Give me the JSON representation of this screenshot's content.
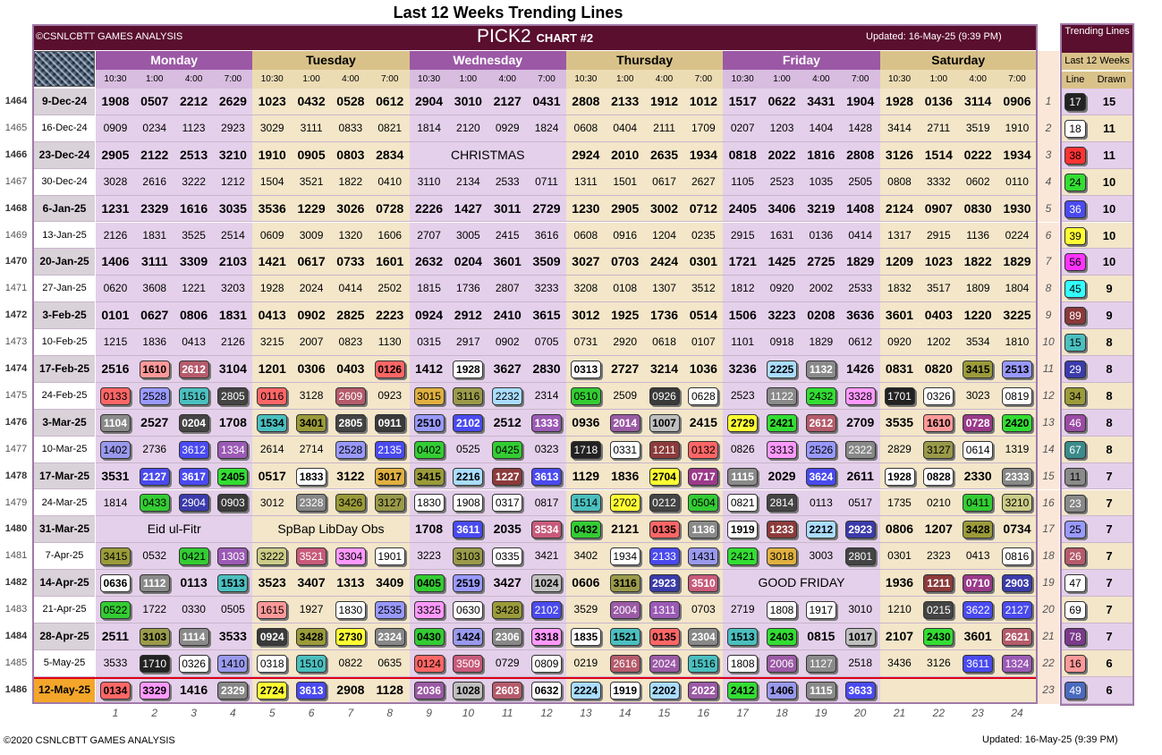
{
  "title": "Last 12 Weeks Trending Lines",
  "copyright_band": "©CSNLCBTT GAMES ANALYSIS",
  "chart_name": "PICK2",
  "chart_sub": "CHART #2",
  "updated": "Updated: 16-May-25 (9:39 PM)",
  "footer_left": "©2020 CSNLCBTT GAMES ANALYSIS",
  "footer_right": "Updated: 16-May-25 (9:39 PM)",
  "days": [
    "Monday",
    "Tuesday",
    "Wednesday",
    "Thursday",
    "Friday",
    "Saturday"
  ],
  "times": [
    "10:30",
    "1:00",
    "4:00",
    "7:00"
  ],
  "column_numbers": [
    "1",
    "2",
    "3",
    "4",
    "5",
    "6",
    "7",
    "8",
    "9",
    "10",
    "11",
    "12",
    "13",
    "14",
    "15",
    "16",
    "17",
    "18",
    "19",
    "20",
    "21",
    "22",
    "23",
    "24"
  ],
  "colors": {
    "band": "#5a0f2e",
    "purple_day": "#9b58a5",
    "gold_day": "#d9c28a",
    "purple_row": "#e4d0ea",
    "gold_row": "#f3e6c9",
    "highlight": "#f4a62a"
  },
  "pill_colors": {
    "01": "#ff6666",
    "02": "#444444",
    "04": "#33cc33",
    "05": "#33cc33",
    "06": "#ffffff",
    "07": "#9b3a8a",
    "08": "#ffffff",
    "10": "#bfbfbf",
    "11": "#8a8a8a",
    "12": "#8c3b3b",
    "13": "#9b5ab5",
    "14": "#9999ee",
    "15": "#4bbfbf",
    "16": "#ff9999",
    "17": "#222222",
    "18": "#ffffff",
    "19": "#ffffff",
    "20": "#9b5aa5",
    "21": "#4a4aee",
    "22": "#aaddff",
    "23": "#888888",
    "24": "#33dd33",
    "25": "#9999ff",
    "26": "#b55b6b",
    "27": "#ffff33",
    "28": "#444444",
    "29": "#3b3bab",
    "30": "#e0b040",
    "31": "#9a9a4a",
    "32": "#cccc88",
    "33": "#ff99ff",
    "34": "#9b9b3a",
    "35": "#c85a7a",
    "36": "#4a4af0",
    "38": "#ff3333",
    "39": "#ffff33",
    "40": "#6a6a6a",
    "41": "#33cc33",
    "42": "#ff66ff",
    "45": "#33ffff",
    "46": "#9b4aa5",
    "47": "#ffffff",
    "49": "#4a6abf",
    "56": "#ff33ff",
    "67": "#3b8b8b",
    "69": "#ffffff",
    "78": "#7a3a8a",
    "89": "#8a3a3a",
    "09": "#3a3a3a",
    "03": "#ffffff"
  },
  "rows": [
    {
      "num": "1464",
      "date": "9-Dec-24",
      "bold": true,
      "cells": [
        "1908",
        "0507",
        "2212",
        "2629",
        "1023",
        "0432",
        "0528",
        "0612",
        "2904",
        "3010",
        "2127",
        "0431",
        "2808",
        "2133",
        "1912",
        "1012",
        "1517",
        "0622",
        "3431",
        "1904",
        "1928",
        "0136",
        "3114",
        "0906"
      ]
    },
    {
      "num": "1465",
      "date": "16-Dec-24",
      "bold": false,
      "cells": [
        "0909",
        "0234",
        "1123",
        "2923",
        "3029",
        "3111",
        "0833",
        "0821",
        "1814",
        "2120",
        "0929",
        "1824",
        "0608",
        "0404",
        "2111",
        "1709",
        "0207",
        "1203",
        "1404",
        "1428",
        "3414",
        "2711",
        "3519",
        "1910"
      ]
    },
    {
      "num": "1466",
      "date": "23-Dec-24",
      "bold": true,
      "cells": [
        "2905",
        "2122",
        "2513",
        "3210",
        "1910",
        "0905",
        "0803",
        "2834",
        "",
        "",
        "",
        "",
        "2924",
        "2010",
        "2635",
        "1934",
        "0818",
        "2022",
        "1816",
        "2808",
        "3126",
        "1514",
        "0222",
        "1934"
      ],
      "holidays": [
        {
          "start": 8,
          "span": 4,
          "text": "CHRISTMAS"
        }
      ]
    },
    {
      "num": "1467",
      "date": "30-Dec-24",
      "bold": false,
      "cells": [
        "3028",
        "2616",
        "3222",
        "1212",
        "1504",
        "3521",
        "1822",
        "0410",
        "3110",
        "2134",
        "2533",
        "0711",
        "1311",
        "1501",
        "0617",
        "2627",
        "1105",
        "2523",
        "1035",
        "2505",
        "0808",
        "3332",
        "0602",
        "0110"
      ]
    },
    {
      "num": "1468",
      "date": "6-Jan-25",
      "bold": true,
      "cells": [
        "1231",
        "2329",
        "1616",
        "3035",
        "3536",
        "1229",
        "3026",
        "0728",
        "2226",
        "1427",
        "3011",
        "2729",
        "1230",
        "2905",
        "3002",
        "0712",
        "2405",
        "3406",
        "3219",
        "1408",
        "2124",
        "0907",
        "0830",
        "1930"
      ]
    },
    {
      "num": "1469",
      "date": "13-Jan-25",
      "bold": false,
      "cells": [
        "2126",
        "1831",
        "3525",
        "2514",
        "0609",
        "3009",
        "1320",
        "1606",
        "2707",
        "3005",
        "2415",
        "3616",
        "0608",
        "0916",
        "1204",
        "0235",
        "2915",
        "1631",
        "0136",
        "0414",
        "1317",
        "2915",
        "1136",
        "0224"
      ]
    },
    {
      "num": "1470",
      "date": "20-Jan-25",
      "bold": true,
      "cells": [
        "1406",
        "3111",
        "3309",
        "2103",
        "1421",
        "0617",
        "0733",
        "1601",
        "2632",
        "0204",
        "3601",
        "3509",
        "3027",
        "0703",
        "2424",
        "0301",
        "1721",
        "1425",
        "2725",
        "1829",
        "1209",
        "1023",
        "1822",
        "1829"
      ]
    },
    {
      "num": "1471",
      "date": "27-Jan-25",
      "bold": false,
      "cells": [
        "0620",
        "3608",
        "1221",
        "3203",
        "1928",
        "2024",
        "0414",
        "2502",
        "1815",
        "1736",
        "2807",
        "3233",
        "3208",
        "0108",
        "1307",
        "3512",
        "1812",
        "0920",
        "2002",
        "2533",
        "1832",
        "3517",
        "1809",
        "1804"
      ]
    },
    {
      "num": "1472",
      "date": "3-Feb-25",
      "bold": true,
      "cells": [
        "0101",
        "0627",
        "0806",
        "1831",
        "0413",
        "0902",
        "2825",
        "2223",
        "0924",
        "2912",
        "2410",
        "3615",
        "3012",
        "1925",
        "1736",
        "0514",
        "1506",
        "3223",
        "0208",
        "3636",
        "3601",
        "0403",
        "1220",
        "3225"
      ]
    },
    {
      "num": "1473",
      "date": "10-Feb-25",
      "bold": false,
      "cells": [
        "1215",
        "1836",
        "0413",
        "2126",
        "3215",
        "2007",
        "0823",
        "1130",
        "0315",
        "2917",
        "0902",
        "0705",
        "0731",
        "2920",
        "0618",
        "0107",
        "1101",
        "0918",
        "1829",
        "0612",
        "0920",
        "1202",
        "3534",
        "1810"
      ]
    },
    {
      "num": "1474",
      "date": "17-Feb-25",
      "bold": true,
      "cells": [
        "2516",
        "1610",
        "2612",
        "3104",
        "1201",
        "0306",
        "0403",
        "0126",
        "1412",
        "1928",
        "3627",
        "2830",
        "0313",
        "2727",
        "3214",
        "1036",
        "3236",
        "2225",
        "1132",
        "1426",
        "0831",
        "0820",
        "3415",
        "2513"
      ],
      "pills": [
        1,
        2,
        7,
        9,
        12,
        17,
        18,
        22,
        23
      ]
    },
    {
      "num": "1475",
      "date": "24-Feb-25",
      "bold": false,
      "cells": [
        "0133",
        "2528",
        "1516",
        "2805",
        "0116",
        "3128",
        "2609",
        "0923",
        "3015",
        "3116",
        "2232",
        "2314",
        "0510",
        "2509",
        "0926",
        "0628",
        "2523",
        "1122",
        "2432",
        "3328",
        "1701",
        "0326",
        "3023",
        "0819"
      ],
      "pills": [
        0,
        1,
        2,
        3,
        4,
        6,
        8,
        9,
        10,
        12,
        14,
        15,
        17,
        18,
        19,
        20,
        21,
        23
      ]
    },
    {
      "num": "1476",
      "date": "3-Mar-25",
      "bold": true,
      "cells": [
        "1104",
        "2527",
        "0204",
        "1708",
        "1534",
        "3401",
        "2805",
        "0911",
        "2510",
        "2102",
        "2512",
        "1333",
        "0936",
        "2014",
        "1007",
        "2415",
        "2729",
        "2421",
        "2612",
        "2709",
        "3535",
        "1610",
        "0728",
        "2420"
      ],
      "pills": [
        0,
        2,
        4,
        5,
        6,
        7,
        8,
        9,
        11,
        13,
        14,
        16,
        17,
        18,
        21,
        22,
        23
      ]
    },
    {
      "num": "1477",
      "date": "10-Mar-25",
      "bold": false,
      "cells": [
        "1402",
        "2736",
        "3612",
        "1334",
        "2614",
        "2714",
        "2528",
        "2135",
        "0402",
        "0525",
        "0425",
        "0323",
        "1718",
        "0331",
        "1211",
        "0132",
        "0826",
        "3313",
        "2526",
        "2322",
        "2829",
        "3127",
        "0614",
        "1319"
      ],
      "pills": [
        0,
        2,
        3,
        6,
        7,
        8,
        10,
        12,
        13,
        14,
        15,
        17,
        18,
        19,
        21,
        22
      ]
    },
    {
      "num": "1478",
      "date": "17-Mar-25",
      "bold": true,
      "cells": [
        "3531",
        "2127",
        "3617",
        "2405",
        "0517",
        "1833",
        "3122",
        "3017",
        "3415",
        "2216",
        "1227",
        "3613",
        "1129",
        "1836",
        "2704",
        "0717",
        "1115",
        "2029",
        "3624",
        "2611",
        "1928",
        "0828",
        "2330",
        "2333"
      ],
      "pills": [
        1,
        2,
        3,
        5,
        7,
        8,
        9,
        10,
        11,
        14,
        15,
        16,
        18,
        20,
        21,
        23
      ]
    },
    {
      "num": "1479",
      "date": "24-Mar-25",
      "bold": false,
      "cells": [
        "1814",
        "0433",
        "2904",
        "0903",
        "3012",
        "2328",
        "3426",
        "3127",
        "1830",
        "1908",
        "0317",
        "0817",
        "1514",
        "2702",
        "0212",
        "0504",
        "0821",
        "2814",
        "0113",
        "0517",
        "1735",
        "0210",
        "0411",
        "3210"
      ],
      "pills": [
        1,
        2,
        3,
        5,
        6,
        7,
        8,
        9,
        10,
        12,
        13,
        14,
        15,
        16,
        17,
        22,
        23
      ]
    },
    {
      "num": "1480",
      "date": "31-Mar-25",
      "bold": true,
      "cells": [
        "",
        "",
        "",
        "",
        "",
        "",
        "",
        "",
        "1708",
        "3611",
        "2035",
        "3534",
        "0432",
        "2121",
        "0135",
        "1136",
        "1919",
        "1233",
        "2212",
        "2923",
        "0806",
        "1207",
        "3428",
        "0734"
      ],
      "pills": [
        9,
        11,
        12,
        14,
        15,
        16,
        17,
        18,
        19,
        22
      ],
      "holidays": [
        {
          "start": 0,
          "span": 4,
          "text": "Eid ul-Fitr"
        },
        {
          "start": 4,
          "span": 4,
          "text": "SpBap LibDay Obs"
        }
      ]
    },
    {
      "num": "1481",
      "date": "7-Apr-25",
      "bold": false,
      "cells": [
        "3415",
        "0532",
        "0421",
        "1303",
        "3222",
        "3521",
        "3304",
        "1901",
        "3223",
        "3103",
        "0335",
        "3421",
        "3402",
        "1934",
        "2133",
        "1431",
        "2421",
        "3018",
        "3003",
        "2801",
        "0301",
        "2323",
        "0413",
        "0816"
      ],
      "pills": [
        0,
        2,
        3,
        4,
        5,
        6,
        7,
        9,
        10,
        13,
        14,
        15,
        16,
        17,
        19,
        23
      ]
    },
    {
      "num": "1482",
      "date": "14-Apr-25",
      "bold": true,
      "cells": [
        "0636",
        "1112",
        "0113",
        "1513",
        "3523",
        "3407",
        "1313",
        "3409",
        "0405",
        "2519",
        "3427",
        "1024",
        "0606",
        "3116",
        "2923",
        "3510",
        "",
        "",
        "",
        "",
        "1936",
        "1211",
        "0710",
        "2903"
      ],
      "pills": [
        0,
        1,
        3,
        8,
        9,
        11,
        13,
        14,
        15,
        21,
        22,
        23
      ],
      "holidays": [
        {
          "start": 16,
          "span": 4,
          "text": "GOOD FRIDAY"
        }
      ]
    },
    {
      "num": "1483",
      "date": "21-Apr-25",
      "bold": false,
      "cells": [
        "0522",
        "1722",
        "0330",
        "0505",
        "1615",
        "1927",
        "1830",
        "2535",
        "3325",
        "0630",
        "3428",
        "2102",
        "3529",
        "2004",
        "1311",
        "0703",
        "2719",
        "1808",
        "1917",
        "3010",
        "1210",
        "0215",
        "3622",
        "2127"
      ],
      "pills": [
        0,
        4,
        6,
        7,
        8,
        9,
        10,
        11,
        13,
        14,
        17,
        18,
        21,
        22,
        23
      ]
    },
    {
      "num": "1484",
      "date": "28-Apr-25",
      "bold": true,
      "cells": [
        "2511",
        "3103",
        "1114",
        "3533",
        "0924",
        "3428",
        "2730",
        "2324",
        "0430",
        "1424",
        "2306",
        "3318",
        "1835",
        "1521",
        "0135",
        "2304",
        "1513",
        "2403",
        "0815",
        "1017",
        "2107",
        "2430",
        "3601",
        "2621"
      ],
      "pills": [
        1,
        2,
        4,
        5,
        6,
        7,
        8,
        9,
        10,
        11,
        12,
        13,
        14,
        15,
        16,
        17,
        19,
        21,
        23
      ]
    },
    {
      "num": "1485",
      "date": "5-May-25",
      "bold": false,
      "cells": [
        "3533",
        "1710",
        "0326",
        "1410",
        "0318",
        "1510",
        "0822",
        "0635",
        "0124",
        "3509",
        "0729",
        "0809",
        "0219",
        "2616",
        "2024",
        "1516",
        "1808",
        "2006",
        "1127",
        "2518",
        "3436",
        "3126",
        "3611",
        "1324"
      ],
      "pills": [
        1,
        2,
        3,
        4,
        5,
        8,
        9,
        11,
        13,
        14,
        15,
        16,
        17,
        18,
        22,
        23
      ]
    },
    {
      "num": "1486",
      "date": "12-May-25",
      "bold": true,
      "highlight": true,
      "cells": [
        "0134",
        "3329",
        "1416",
        "2329",
        "2724",
        "3613",
        "2908",
        "1128",
        "2036",
        "1028",
        "2603",
        "0632",
        "2224",
        "1919",
        "2202",
        "2022",
        "2412",
        "1406",
        "1115",
        "3633",
        "",
        "",
        "",
        ""
      ],
      "pills": [
        0,
        1,
        3,
        4,
        5,
        8,
        9,
        10,
        11,
        12,
        13,
        14,
        15,
        16,
        17,
        18,
        19
      ]
    }
  ],
  "trending": {
    "head": "Trending Lines",
    "sub": "Last 12 Weeks",
    "col_line": "Line",
    "col_drawn": "Drawn",
    "items": [
      {
        "line": "17",
        "drawn": "15"
      },
      {
        "line": "18",
        "drawn": "11"
      },
      {
        "line": "38",
        "drawn": "11"
      },
      {
        "line": "24",
        "drawn": "10"
      },
      {
        "line": "36",
        "drawn": "10"
      },
      {
        "line": "39",
        "drawn": "10"
      },
      {
        "line": "56",
        "drawn": "10"
      },
      {
        "line": "45",
        "drawn": "9"
      },
      {
        "line": "89",
        "drawn": "9"
      },
      {
        "line": "15",
        "drawn": "8"
      },
      {
        "line": "29",
        "drawn": "8"
      },
      {
        "line": "34",
        "drawn": "8"
      },
      {
        "line": "46",
        "drawn": "8"
      },
      {
        "line": "67",
        "drawn": "8"
      },
      {
        "line": "11",
        "drawn": "7"
      },
      {
        "line": "23",
        "drawn": "7"
      },
      {
        "line": "25",
        "drawn": "7"
      },
      {
        "line": "26",
        "drawn": "7"
      },
      {
        "line": "47",
        "drawn": "7"
      },
      {
        "line": "69",
        "drawn": "7"
      },
      {
        "line": "78",
        "drawn": "7"
      },
      {
        "line": "16",
        "drawn": "6"
      },
      {
        "line": "49",
        "drawn": "6"
      }
    ]
  },
  "chart_data": {
    "type": "table",
    "title": "Last 12 Weeks Trending Lines",
    "columns": [
      "Monday 10:30",
      "Monday 1:00",
      "Monday 4:00",
      "Monday 7:00",
      "Tuesday 10:30",
      "Tuesday 1:00",
      "Tuesday 4:00",
      "Tuesday 7:00",
      "Wednesday 10:30",
      "Wednesday 1:00",
      "Wednesday 4:00",
      "Wednesday 7:00",
      "Thursday 10:30",
      "Thursday 1:00",
      "Thursday 4:00",
      "Thursday 7:00",
      "Friday 10:30",
      "Friday 1:00",
      "Friday 4:00",
      "Friday 7:00",
      "Saturday 10:30",
      "Saturday 1:00",
      "Saturday 4:00",
      "Saturday 7:00"
    ],
    "trending_lines": [
      "17",
      "18",
      "38",
      "24",
      "36",
      "39",
      "56",
      "45",
      "89",
      "15",
      "29",
      "34",
      "46",
      "67",
      "11",
      "23",
      "25",
      "26",
      "47",
      "69",
      "78",
      "16",
      "49"
    ],
    "drawn_counts": [
      15,
      11,
      11,
      10,
      10,
      10,
      10,
      9,
      9,
      8,
      8,
      8,
      8,
      8,
      7,
      7,
      7,
      7,
      7,
      7,
      7,
      6,
      6
    ]
  }
}
